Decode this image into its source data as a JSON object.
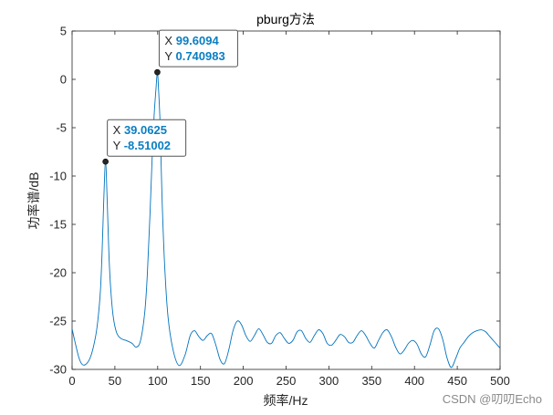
{
  "chart_data": {
    "type": "line",
    "title": "pburg方法",
    "xlabel": "频率/Hz",
    "ylabel": "功率谱/dB",
    "xlim": [
      0,
      500
    ],
    "ylim": [
      -30,
      5
    ],
    "xticks": [
      0,
      50,
      100,
      150,
      200,
      250,
      300,
      350,
      400,
      450,
      500
    ],
    "yticks": [
      5,
      0,
      -5,
      -10,
      -15,
      -20,
      -25,
      -30
    ],
    "grid": false,
    "line_color": "#0072BD",
    "series": [
      {
        "x": [
          0,
          3,
          8,
          12,
          17,
          22,
          27,
          30,
          33,
          35,
          37,
          39.0625,
          41,
          43,
          45,
          48,
          52,
          57,
          63,
          70,
          75,
          80,
          85,
          88,
          91,
          94,
          96,
          98,
          99.6094,
          101,
          103,
          105,
          108,
          112,
          118,
          125,
          132,
          138,
          143,
          148,
          153,
          158,
          163,
          168,
          173,
          178,
          183,
          188,
          193,
          198,
          203,
          208,
          213,
          218,
          223,
          228,
          233,
          238,
          243,
          248,
          253,
          258,
          263,
          268,
          273,
          278,
          283,
          288,
          293,
          298,
          303,
          308,
          313,
          318,
          323,
          328,
          333,
          338,
          343,
          348,
          353,
          358,
          363,
          368,
          373,
          378,
          383,
          388,
          393,
          398,
          403,
          408,
          413,
          418,
          423,
          428,
          433,
          438,
          443,
          448,
          453,
          458,
          463,
          468,
          473,
          478,
          483,
          488,
          493,
          498,
          500
        ],
        "y": [
          -25.8,
          -27.0,
          -28.8,
          -29.5,
          -29.4,
          -28.6,
          -26.8,
          -25.0,
          -22.0,
          -18.0,
          -12.5,
          -8.51,
          -12.5,
          -18.0,
          -21.5,
          -24.5,
          -26.2,
          -26.8,
          -27.0,
          -27.3,
          -27.7,
          -27.0,
          -24.0,
          -20.0,
          -14.0,
          -7.0,
          -3.5,
          -1.0,
          0.741,
          -1.0,
          -5.0,
          -12.0,
          -19.0,
          -24.5,
          -28.0,
          -29.6,
          -28.5,
          -26.5,
          -26.0,
          -26.6,
          -27.0,
          -26.5,
          -26.3,
          -27.5,
          -29.0,
          -29.4,
          -28.0,
          -26.0,
          -25.0,
          -25.4,
          -26.5,
          -27.1,
          -26.5,
          -25.8,
          -26.4,
          -27.2,
          -27.3,
          -26.5,
          -26.2,
          -26.8,
          -27.3,
          -27.0,
          -26.1,
          -26.0,
          -26.8,
          -27.2,
          -26.5,
          -25.9,
          -26.3,
          -27.3,
          -27.5,
          -27.0,
          -26.4,
          -26.6,
          -27.2,
          -27.2,
          -26.5,
          -26.0,
          -26.5,
          -27.3,
          -27.8,
          -27.0,
          -26.2,
          -25.9,
          -26.6,
          -27.7,
          -28.4,
          -28.0,
          -27.3,
          -27.0,
          -27.4,
          -28.4,
          -28.7,
          -27.5,
          -26.0,
          -25.8,
          -26.9,
          -28.8,
          -29.8,
          -28.9,
          -27.8,
          -27.2,
          -26.6,
          -26.2,
          -26.0,
          -25.9,
          -26.1,
          -26.6,
          -27.1,
          -27.6,
          -27.8
        ]
      }
    ],
    "datatips": [
      {
        "x_label": "X",
        "y_label": "Y",
        "x_value": "99.6094",
        "y_value": "0.740983",
        "x": 99.6094,
        "y": 0.740983
      },
      {
        "x_label": "X",
        "y_label": "Y",
        "x_value": "39.0625",
        "y_value": "-8.51002",
        "x": 39.0625,
        "y": -8.51002
      }
    ]
  },
  "watermark": "CSDN @叨叨Echo"
}
